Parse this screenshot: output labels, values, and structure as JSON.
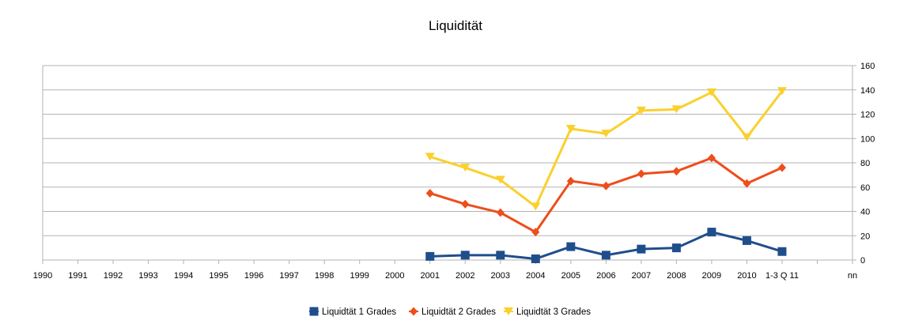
{
  "chart_data": {
    "type": "line",
    "title": "Liquidität",
    "xlabel": "",
    "ylabel": "",
    "categories": [
      "1990",
      "1991",
      "1992",
      "1993",
      "1994",
      "1995",
      "1996",
      "1997",
      "1998",
      "1999",
      "2000",
      "2001",
      "2002",
      "2003",
      "2004",
      "2005",
      "2006",
      "2007",
      "2008",
      "2009",
      "2010",
      "1-3 Q 11",
      "",
      "nn"
    ],
    "ylim": [
      0,
      160
    ],
    "yticks": [
      "0",
      "20",
      "40",
      "60",
      "80",
      "100",
      "120",
      "140",
      "160"
    ],
    "y_axis_position": "right",
    "grid": true,
    "legend_position": "bottom",
    "series": [
      {
        "name": "Liquidtät 1 Grades",
        "color": "#1f4e8c",
        "marker": "square",
        "values": [
          null,
          null,
          null,
          null,
          null,
          null,
          null,
          null,
          null,
          null,
          null,
          3,
          4,
          4,
          1,
          11,
          4,
          9,
          10,
          23,
          16,
          7,
          null,
          null
        ]
      },
      {
        "name": "Liquidtät 2 Grades",
        "color": "#ee4d1c",
        "marker": "diamond",
        "values": [
          null,
          null,
          null,
          null,
          null,
          null,
          null,
          null,
          null,
          null,
          null,
          55,
          46,
          39,
          23,
          65,
          61,
          71,
          73,
          84,
          63,
          76,
          null,
          null
        ]
      },
      {
        "name": "Liquidtät 3 Grades",
        "color": "#fad02c",
        "marker": "triangle-down",
        "values": [
          null,
          null,
          null,
          null,
          null,
          null,
          null,
          null,
          null,
          null,
          null,
          85,
          76,
          66,
          44,
          108,
          104,
          123,
          124,
          138,
          101,
          139,
          null,
          null
        ]
      }
    ]
  }
}
